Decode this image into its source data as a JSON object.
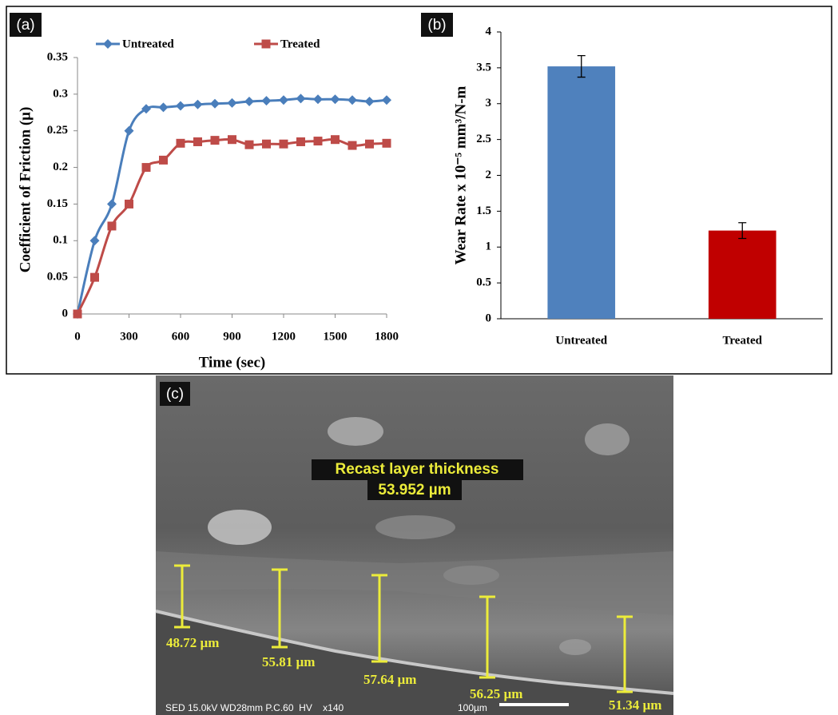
{
  "chart_data": [
    {
      "type": "line",
      "panel_label": "(a)",
      "x_label": "Time (sec)",
      "y_label": "Coefficient  of  Friction (μ)",
      "x": [
        0,
        100,
        200,
        300,
        400,
        500,
        600,
        700,
        800,
        900,
        1000,
        1100,
        1200,
        1300,
        1400,
        1500,
        1600,
        1700,
        1800
      ],
      "series": [
        {
          "name": "Untreated",
          "color": "#4a7ebb",
          "marker": "diamond",
          "values": [
            0,
            0.1,
            0.15,
            0.25,
            0.28,
            0.282,
            0.284,
            0.286,
            0.287,
            0.288,
            0.29,
            0.291,
            0.292,
            0.294,
            0.293,
            0.293,
            0.292,
            0.29,
            0.292
          ]
        },
        {
          "name": "Treated",
          "color": "#be4b48",
          "marker": "square",
          "values": [
            0,
            0.05,
            0.12,
            0.15,
            0.2,
            0.21,
            0.233,
            0.235,
            0.237,
            0.238,
            0.231,
            0.232,
            0.232,
            0.235,
            0.236,
            0.238,
            0.23,
            0.232,
            0.233
          ]
        }
      ],
      "xlim": [
        0,
        1800
      ],
      "xticks": [
        0,
        300,
        600,
        900,
        1200,
        1500,
        1800
      ],
      "ylim": [
        0,
        0.35
      ],
      "yticks": [
        0,
        0.05,
        0.1,
        0.15,
        0.2,
        0.25,
        0.3,
        0.35
      ],
      "legend": "top",
      "grid": false
    },
    {
      "type": "bar",
      "panel_label": "(b)",
      "y_label": "Wear  Rate  x 10⁻⁵ mm³/N-m",
      "categories": [
        "Untreated",
        "Treated"
      ],
      "values": [
        3.52,
        1.23
      ],
      "errors": [
        0.15,
        0.11
      ],
      "colors": [
        "#4f81bd",
        "#c00000"
      ],
      "ylim": [
        0,
        4
      ],
      "yticks": [
        0,
        0.5,
        1,
        1.5,
        2,
        2.5,
        3,
        3.5,
        4
      ],
      "grid": false
    }
  ],
  "sem_image": {
    "panel_label": "(c)",
    "annotation_title": "Recast layer thickness",
    "annotation_value": "53.952 µm",
    "measurements": [
      "48.72 µm",
      "55.81 µm",
      "57.64 µm",
      "56.25 µm",
      "51.34 µm"
    ],
    "footer": "SED 15.0kV WD28mm P.C.60  HV    x140",
    "scale_bar": "100µm"
  }
}
